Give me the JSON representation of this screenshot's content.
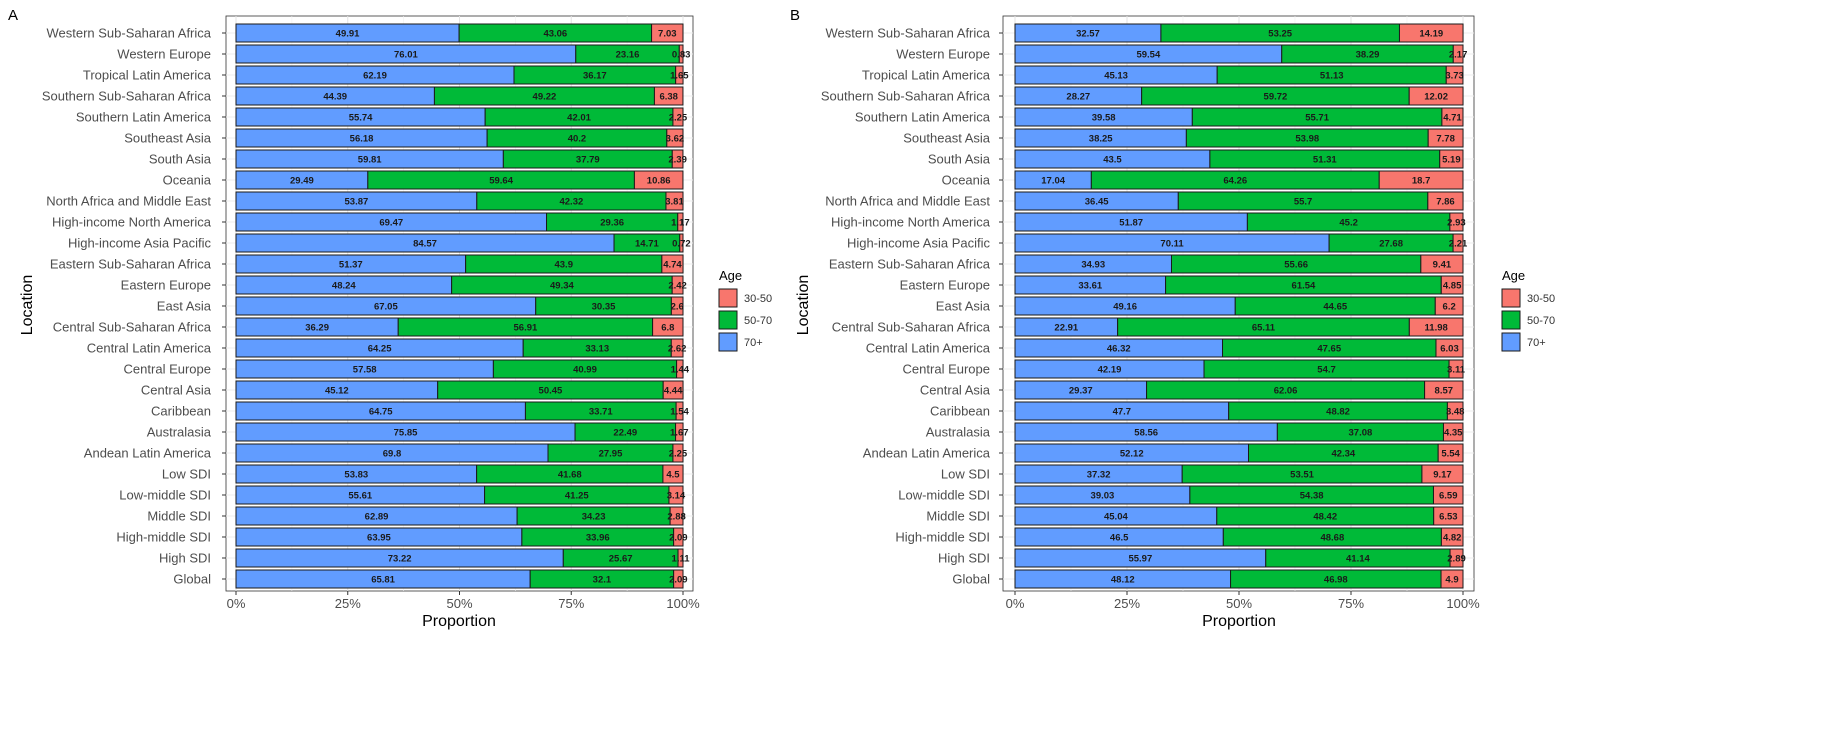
{
  "colors": {
    "age_30_50": "#F8766D",
    "age_50_70": "#00BA38",
    "age_70_plus": "#619CFF"
  },
  "chart_data": [
    {
      "panel_tag": "A",
      "type": "bar",
      "orientation": "horizontal",
      "stacked": true,
      "xlabel": "Proportion",
      "ylabel": "Location",
      "xlim": [
        0,
        100
      ],
      "x_ticks": [
        "0%",
        "25%",
        "50%",
        "75%",
        "100%"
      ],
      "legend": {
        "title": "Age",
        "position": "right",
        "items": [
          "30-50",
          "50-70",
          "70+"
        ]
      },
      "categories": [
        "Western Sub-Saharan Africa",
        "Western Europe",
        "Tropical Latin America",
        "Southern Sub-Saharan Africa",
        "Southern Latin America",
        "Southeast Asia",
        "South Asia",
        "Oceania",
        "North Africa and Middle East",
        "High-income North America",
        "High-income Asia Pacific",
        "Eastern Sub-Saharan Africa",
        "Eastern Europe",
        "East Asia",
        "Central Sub-Saharan Africa",
        "Central Latin America",
        "Central Europe",
        "Central Asia",
        "Caribbean",
        "Australasia",
        "Andean Latin America",
        "Low SDI",
        "Low-middle SDI",
        "Middle SDI",
        "High-middle SDI",
        "High SDI",
        "Global"
      ],
      "series": [
        {
          "name": "70+",
          "values": [
            49.91,
            76.01,
            62.19,
            44.39,
            55.74,
            56.18,
            59.81,
            29.49,
            53.87,
            69.47,
            84.57,
            51.37,
            48.24,
            67.05,
            36.29,
            64.25,
            57.58,
            45.12,
            64.75,
            75.85,
            69.8,
            53.83,
            55.61,
            62.89,
            63.95,
            73.22,
            65.81
          ]
        },
        {
          "name": "50-70",
          "values": [
            43.06,
            23.16,
            36.17,
            49.22,
            42.01,
            40.2,
            37.79,
            59.64,
            42.32,
            29.36,
            14.71,
            43.9,
            49.34,
            30.35,
            56.91,
            33.13,
            40.99,
            50.45,
            33.71,
            22.49,
            27.95,
            41.68,
            41.25,
            34.23,
            33.96,
            25.67,
            32.1
          ]
        },
        {
          "name": "30-50",
          "values": [
            7.03,
            0.83,
            1.65,
            6.38,
            2.25,
            3.62,
            2.39,
            10.86,
            3.81,
            1.17,
            0.72,
            4.74,
            2.42,
            2.6,
            6.8,
            2.62,
            1.44,
            4.44,
            1.54,
            1.67,
            2.25,
            4.5,
            3.14,
            2.88,
            2.09,
            1.11,
            2.09
          ]
        }
      ]
    },
    {
      "panel_tag": "B",
      "type": "bar",
      "orientation": "horizontal",
      "stacked": true,
      "xlabel": "Proportion",
      "ylabel": "Location",
      "xlim": [
        0,
        100
      ],
      "x_ticks": [
        "0%",
        "25%",
        "50%",
        "75%",
        "100%"
      ],
      "legend": {
        "title": "Age",
        "position": "right",
        "items": [
          "30-50",
          "50-70",
          "70+"
        ]
      },
      "categories": [
        "Western Sub-Saharan Africa",
        "Western Europe",
        "Tropical Latin America",
        "Southern Sub-Saharan Africa",
        "Southern Latin America",
        "Southeast Asia",
        "South Asia",
        "Oceania",
        "North Africa and Middle East",
        "High-income North America",
        "High-income Asia Pacific",
        "Eastern Sub-Saharan Africa",
        "Eastern Europe",
        "East Asia",
        "Central Sub-Saharan Africa",
        "Central Latin America",
        "Central Europe",
        "Central Asia",
        "Caribbean",
        "Australasia",
        "Andean Latin America",
        "Low SDI",
        "Low-middle SDI",
        "Middle SDI",
        "High-middle SDI",
        "High SDI",
        "Global"
      ],
      "series": [
        {
          "name": "70+",
          "values": [
            32.57,
            59.54,
            45.13,
            28.27,
            39.58,
            38.25,
            43.5,
            17.04,
            36.45,
            51.87,
            70.11,
            34.93,
            33.61,
            49.16,
            22.91,
            46.32,
            42.19,
            29.37,
            47.7,
            58.56,
            52.12,
            37.32,
            39.03,
            45.04,
            46.5,
            55.97,
            48.12
          ]
        },
        {
          "name": "50-70",
          "values": [
            53.25,
            38.29,
            51.13,
            59.72,
            55.71,
            53.98,
            51.31,
            64.26,
            55.7,
            45.2,
            27.68,
            55.66,
            61.54,
            44.65,
            65.11,
            47.65,
            54.7,
            62.06,
            48.82,
            37.08,
            42.34,
            53.51,
            54.38,
            48.42,
            48.68,
            41.14,
            46.98
          ]
        },
        {
          "name": "30-50",
          "values": [
            14.19,
            2.17,
            3.73,
            12.02,
            4.71,
            7.78,
            5.19,
            18.7,
            7.86,
            2.93,
            2.21,
            9.41,
            4.85,
            6.2,
            11.98,
            6.03,
            3.11,
            8.57,
            3.48,
            4.35,
            5.54,
            9.17,
            6.59,
            6.53,
            4.82,
            2.89,
            4.9
          ]
        }
      ]
    }
  ]
}
